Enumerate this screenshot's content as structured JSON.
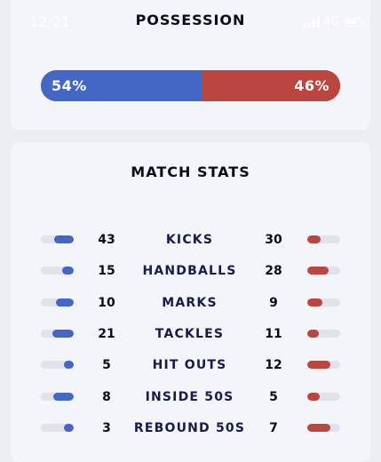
{
  "status_bar": {
    "time": "12:21",
    "network": "4G"
  },
  "possession": {
    "title": "POSSESSION",
    "home_pct": 54,
    "away_pct": 46,
    "home_label": "54%",
    "away_label": "46%",
    "home_color": "#4466c5",
    "away_color": "#bb4640"
  },
  "match_stats": {
    "title": "MATCH STATS",
    "rows": [
      {
        "label": "KICKS",
        "home": "43",
        "away": "30",
        "home_share": 0.59,
        "away_share": 0.41
      },
      {
        "label": "HANDBALLS",
        "home": "15",
        "away": "28",
        "home_share": 0.35,
        "away_share": 0.65
      },
      {
        "label": "MARKS",
        "home": "10",
        "away": "9",
        "home_share": 0.53,
        "away_share": 0.47
      },
      {
        "label": "TACKLES",
        "home": "21",
        "away": "11",
        "home_share": 0.66,
        "away_share": 0.34
      },
      {
        "label": "HIT OUTS",
        "home": "5",
        "away": "12",
        "home_share": 0.29,
        "away_share": 0.71
      },
      {
        "label": "INSIDE 50S",
        "home": "8",
        "away": "5",
        "home_share": 0.62,
        "away_share": 0.38
      },
      {
        "label": "REBOUND 50S",
        "home": "3",
        "away": "7",
        "home_share": 0.3,
        "away_share": 0.7
      }
    ]
  }
}
